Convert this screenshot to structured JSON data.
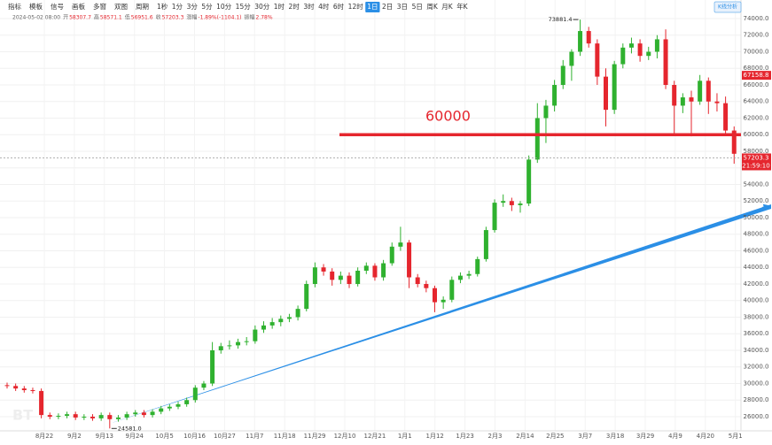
{
  "chart_data": {
    "type": "candlestick",
    "toolbar": [
      "指标",
      "模板",
      "信号",
      "画板",
      "多窗",
      "双图",
      "周期",
      "1秒",
      "1分",
      "3分",
      "5分",
      "10分",
      "15分",
      "30分",
      "1时",
      "2时",
      "3时",
      "4时",
      "6时",
      "12时",
      "1日",
      "2日",
      "3日",
      "5日",
      "周K",
      "月K",
      "年K"
    ],
    "active_period": "1日",
    "analysis_button": "K线分析",
    "info": [
      "2024-05-02 08:00",
      "开",
      "58307.7",
      "高",
      "58571.1",
      "低",
      "56951.6",
      "收",
      "57203.3",
      "涨幅",
      "-1.89%(-1104.1)",
      "振幅",
      "2.78%"
    ],
    "watermark": "BT",
    "date_labels": [
      "8月22",
      "9月2",
      "9月13",
      "9月24",
      "10月5",
      "10月16",
      "10月27",
      "11月7",
      "11月18",
      "11月29",
      "12月10",
      "12月21",
      "1月1",
      "1月12",
      "1月23",
      "2月3",
      "2月14",
      "2月25",
      "3月7",
      "3月18",
      "3月29",
      "4月9",
      "4月20",
      "5月1"
    ],
    "up_color": "#2fb12f",
    "down_color": "#e5262e",
    "candles": {
      "open": [
        29800,
        29700,
        29400,
        29200,
        29100,
        26200,
        26000,
        26100,
        26300,
        25900,
        26000,
        25800,
        26200,
        25700,
        25900,
        26300,
        26500,
        26200,
        26600,
        27000,
        27200,
        27500,
        28000,
        29500,
        30000,
        34000,
        34500,
        34600,
        35000,
        35100,
        36500,
        37000,
        37400,
        37800,
        38000,
        39000,
        42000,
        44000,
        43500,
        42500,
        43000,
        42000,
        43600,
        44200,
        42800,
        44500,
        46500,
        47000,
        42800,
        42000,
        41500,
        39800,
        40100,
        42500,
        43000,
        43200,
        45000,
        48500,
        51800,
        52000,
        51500,
        51700,
        57000,
        62000,
        63500,
        66000,
        68300,
        70000,
        72500,
        71000,
        67000,
        63000,
        68500,
        70500,
        71000,
        69500,
        70000,
        71500,
        66000,
        63500,
        64500,
        64000,
        66500,
        64000,
        63800,
        60500
      ],
      "high": [
        30100,
        30000,
        29700,
        29500,
        29400,
        26500,
        26400,
        26600,
        26600,
        26300,
        26300,
        26500,
        26500,
        26200,
        26600,
        26800,
        26800,
        26900,
        27300,
        27500,
        27800,
        28300,
        29800,
        30300,
        35000,
        34900,
        35200,
        35400,
        35600,
        37000,
        37500,
        37900,
        38200,
        38400,
        39400,
        42400,
        44600,
        44400,
        43900,
        43500,
        43400,
        44000,
        44600,
        44500,
        44900,
        47000,
        48900,
        47300,
        43200,
        42400,
        41800,
        40500,
        42900,
        43400,
        43600,
        45300,
        48900,
        52200,
        52800,
        52400,
        52000,
        57500,
        63800,
        64200,
        66600,
        69000,
        70300,
        73881.4,
        73000,
        71500,
        68000,
        68900,
        71000,
        71700,
        71500,
        70600,
        72000,
        72700,
        66500,
        65000,
        65300,
        67200,
        66900,
        65000,
        64600,
        61000
      ],
      "low": [
        29400,
        29100,
        28900,
        28800,
        25800,
        25700,
        25700,
        25800,
        25600,
        25600,
        25500,
        25500,
        24581,
        25400,
        25600,
        26000,
        25900,
        25900,
        26300,
        26700,
        26900,
        27200,
        27700,
        29200,
        29700,
        33600,
        34100,
        34200,
        34600,
        34800,
        36100,
        36600,
        36900,
        37400,
        37600,
        38700,
        41600,
        43000,
        41800,
        42000,
        41500,
        41700,
        43200,
        42400,
        42400,
        44200,
        46000,
        41500,
        41600,
        41000,
        38600,
        39000,
        39800,
        42100,
        42600,
        42900,
        44700,
        48200,
        51300,
        50800,
        50600,
        51400,
        56600,
        59000,
        62800,
        65500,
        66500,
        69500,
        70500,
        66000,
        61000,
        62500,
        68000,
        69800,
        68800,
        69000,
        69200,
        65500,
        60000,
        62600,
        59800,
        63600,
        62500,
        62800,
        60000,
        56500
      ],
      "close": [
        29700,
        29400,
        29200,
        29100,
        26200,
        26000,
        26100,
        26300,
        25900,
        26000,
        25800,
        26200,
        25700,
        25900,
        26300,
        26500,
        26200,
        26600,
        27000,
        27200,
        27500,
        28000,
        29500,
        30000,
        34000,
        34500,
        34600,
        35000,
        35100,
        36500,
        37000,
        37400,
        37800,
        38000,
        39000,
        42000,
        44000,
        43500,
        42500,
        43000,
        42000,
        43600,
        44200,
        42800,
        44500,
        46500,
        47000,
        42800,
        42000,
        41500,
        39800,
        40100,
        42500,
        43000,
        43200,
        45000,
        48500,
        51800,
        52000,
        51500,
        51700,
        57000,
        62000,
        63500,
        66000,
        68300,
        70000,
        72500,
        71000,
        67000,
        63000,
        68500,
        70500,
        71000,
        69500,
        70000,
        71500,
        66000,
        63500,
        64500,
        64000,
        66500,
        64000,
        63800,
        60500,
        57700
      ]
    },
    "marker_labels": {
      "max": "73881.4",
      "min": "24581.0"
    },
    "level": 60000,
    "marker_price": 67158.8,
    "current_price": 57203.3,
    "countdown": "21:59:10",
    "ylim": [
      24293,
      76240
    ],
    "yticks": [
      {
        "value": 26000,
        "label": "26000.0"
      },
      {
        "value": 28000,
        "label": "28000.0"
      },
      {
        "value": 30000,
        "label": "30000.0"
      },
      {
        "value": 32000,
        "label": "32000.0"
      },
      {
        "value": 34000,
        "label": "34000.0"
      },
      {
        "value": 36000,
        "label": "36000.0"
      },
      {
        "value": 38000,
        "label": "38000.0"
      },
      {
        "value": 40000,
        "label": "40000.0"
      },
      {
        "value": 42000,
        "label": "42000.0"
      },
      {
        "value": 44000,
        "label": "44000.0"
      },
      {
        "value": 46000,
        "label": "46000.0"
      },
      {
        "value": 48000,
        "label": "48000.0"
      },
      {
        "value": 50000,
        "label": "50000.0"
      },
      {
        "value": 52000,
        "label": "52000.0"
      },
      {
        "value": 54000,
        "label": "54000.0"
      },
      {
        "value": 56000,
        "label": "56000.0"
      },
      {
        "value": 58000,
        "label": "58000.0"
      },
      {
        "value": 60000,
        "label": "60000.0"
      },
      {
        "value": 62000,
        "label": "62000.0"
      },
      {
        "value": 64000,
        "label": "64000.0"
      },
      {
        "value": 66000,
        "label": "66000.0"
      },
      {
        "value": 68000,
        "label": "68000.0"
      },
      {
        "value": 70000,
        "label": "70000.0"
      },
      {
        "value": 72000,
        "label": "72000.0"
      },
      {
        "value": 74000,
        "label": "74000.0"
      }
    ],
    "grid": true
  }
}
